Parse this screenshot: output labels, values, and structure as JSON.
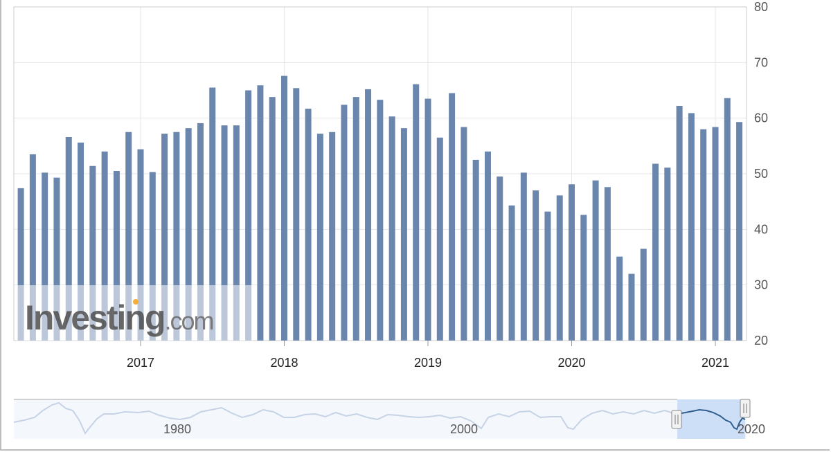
{
  "chart_data": {
    "type": "bar",
    "title": "",
    "xlabel": "",
    "ylabel": "",
    "ylim": [
      20,
      80
    ],
    "y_ticks": [
      "20",
      "30",
      "40",
      "50",
      "60",
      "70",
      "80"
    ],
    "x_ticks": [
      "2017",
      "2018",
      "2019",
      "2020",
      "2021"
    ],
    "grid": true,
    "y_axis_position": "right",
    "bar_color": "#6b86ad",
    "categories": [
      "2016-03",
      "2016-04",
      "2016-05",
      "2016-06",
      "2016-07",
      "2016-08",
      "2016-09",
      "2016-10",
      "2016-11",
      "2016-12",
      "2017-01",
      "2017-02",
      "2017-03",
      "2017-04",
      "2017-05",
      "2017-06",
      "2017-07",
      "2017-08",
      "2017-09",
      "2017-10",
      "2017-11",
      "2017-12",
      "2018-01",
      "2018-02",
      "2018-03",
      "2018-04",
      "2018-05",
      "2018-06",
      "2018-07",
      "2018-08",
      "2018-09",
      "2018-10",
      "2018-11",
      "2018-12",
      "2019-01",
      "2019-02",
      "2019-03",
      "2019-04",
      "2019-05",
      "2019-06",
      "2019-07",
      "2019-08",
      "2019-09",
      "2019-10",
      "2019-11",
      "2019-12",
      "2020-01",
      "2020-02",
      "2020-03",
      "2020-04",
      "2020-05",
      "2020-06",
      "2020-07",
      "2020-08",
      "2020-09",
      "2020-10",
      "2020-11",
      "2020-12",
      "2021-01",
      "2021-02",
      "2021-03"
    ],
    "values": [
      47.4,
      53.5,
      50.2,
      49.3,
      56.6,
      55.6,
      51.4,
      54.0,
      50.5,
      57.5,
      54.4,
      50.3,
      57.2,
      57.5,
      58.2,
      59.1,
      65.5,
      58.7,
      58.7,
      65.0,
      65.9,
      63.8,
      67.6,
      65.4,
      61.7,
      57.2,
      57.5,
      62.4,
      63.8,
      65.2,
      63.3,
      60.3,
      58.2,
      66.1,
      63.5,
      56.5,
      64.5,
      58.4,
      52.5,
      54.0,
      49.5,
      44.3,
      50.2,
      47.0,
      43.2,
      46.1,
      48.1,
      42.6,
      48.8,
      47.6,
      35.1,
      32.0,
      36.5,
      51.8,
      51.1,
      62.2,
      60.9,
      58.0,
      58.4,
      63.6,
      59.3
    ],
    "navigator": {
      "x_ticks": [
        "1980",
        "2000",
        "2020"
      ]
    }
  },
  "watermark": {
    "brand": "Investing",
    "suffix": ".com"
  }
}
